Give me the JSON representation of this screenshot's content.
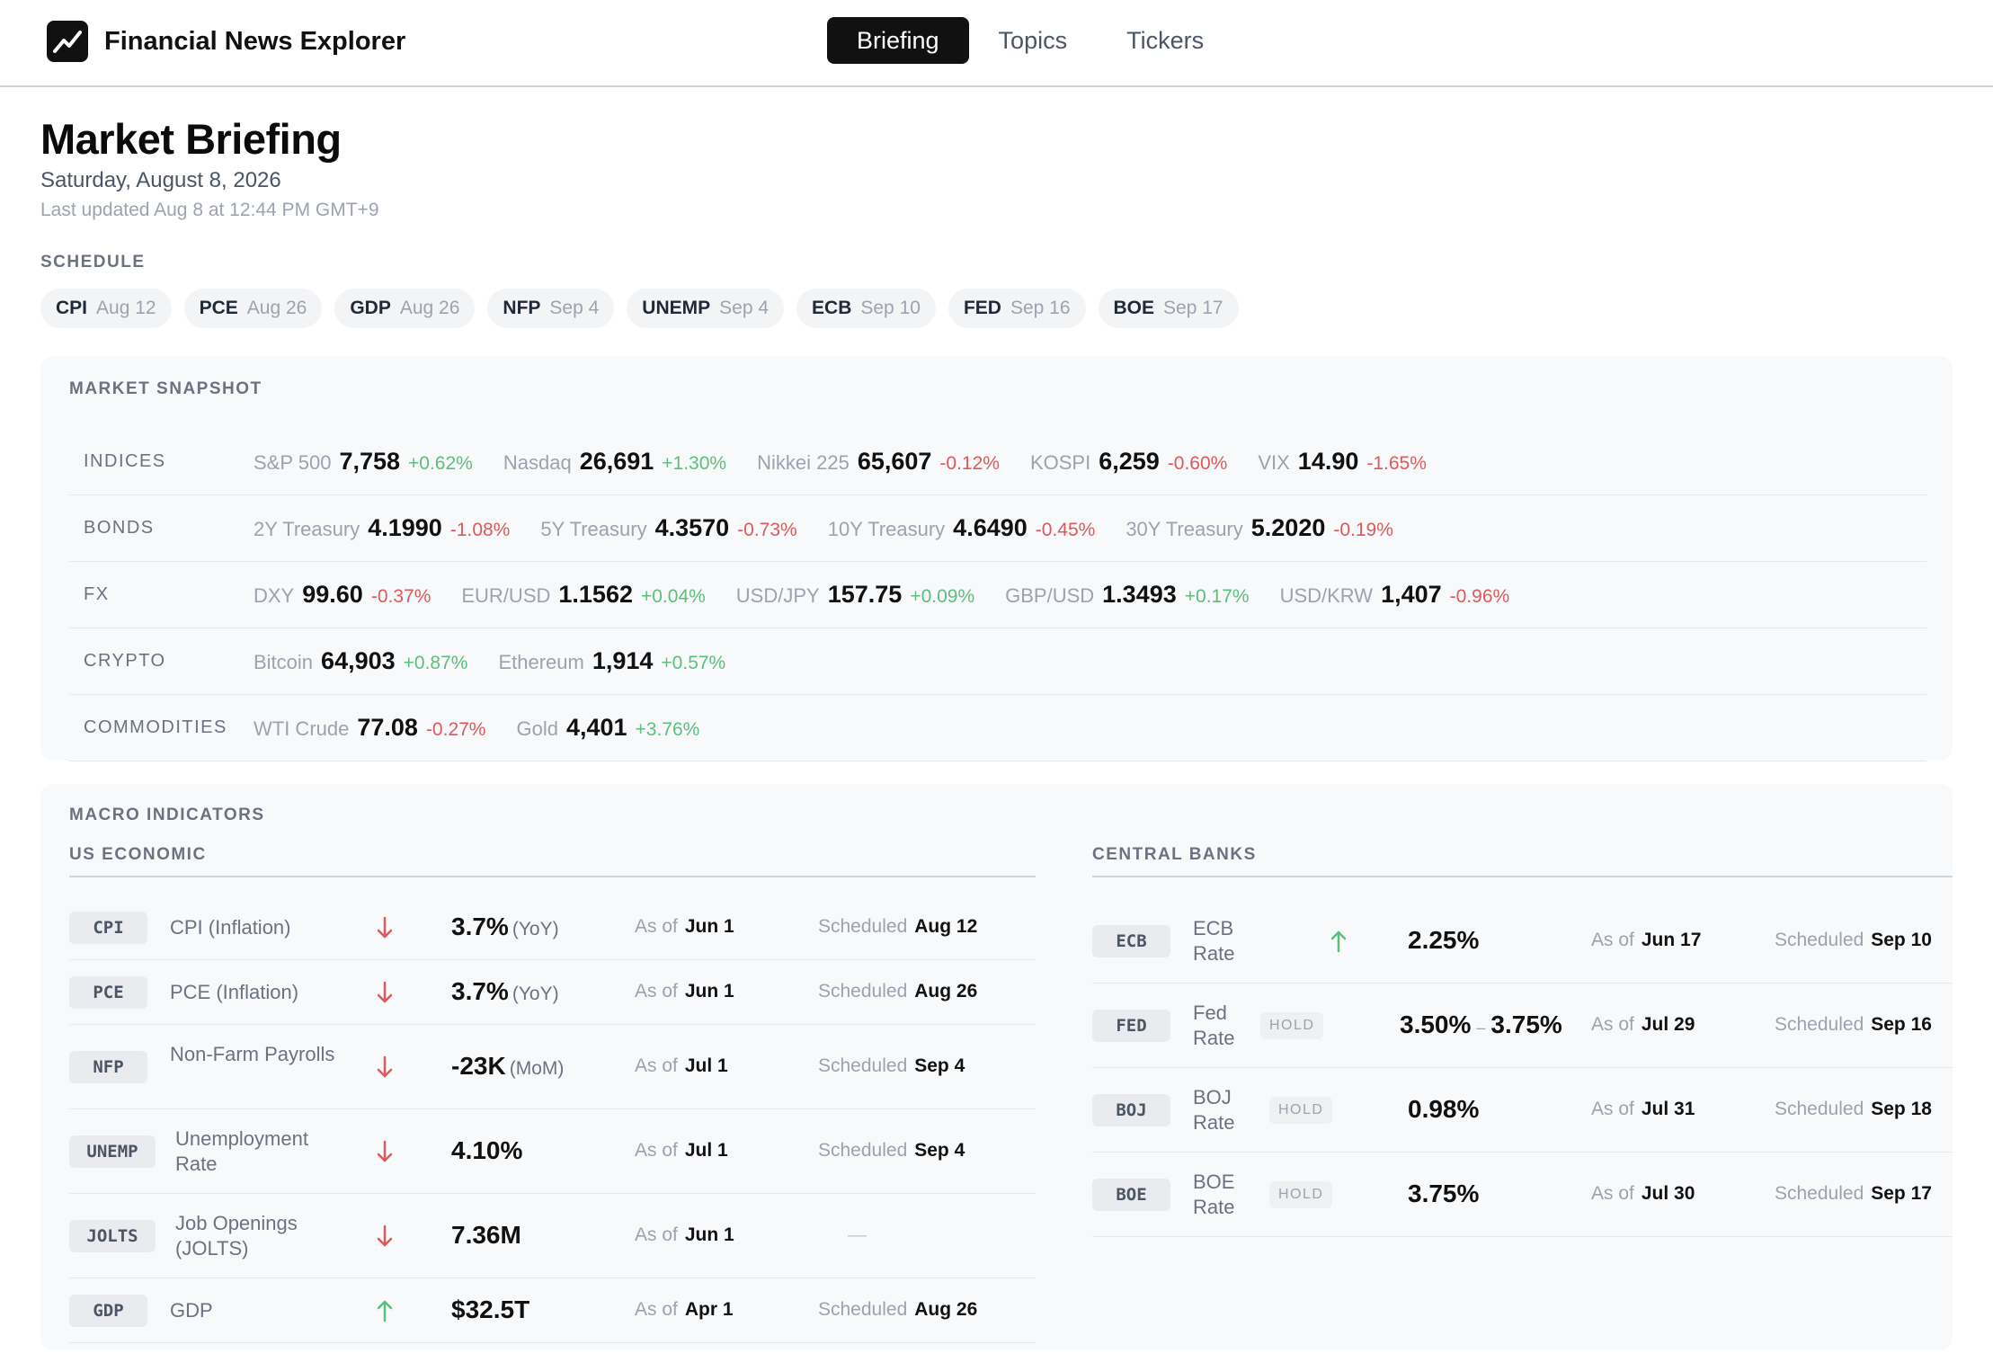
{
  "app": {
    "title": "Financial News Explorer",
    "logo_icon": "trend-up-icon"
  },
  "nav": {
    "tabs": [
      {
        "label": "Briefing",
        "active": true
      },
      {
        "label": "Topics",
        "active": false
      },
      {
        "label": "Tickers",
        "active": false
      }
    ]
  },
  "page": {
    "title": "Market Briefing",
    "date": "Saturday, August 8, 2026",
    "updated": "Last updated Aug 8 at 12:44 PM GMT+9"
  },
  "schedule": {
    "label": "SCHEDULE",
    "items": [
      {
        "code": "CPI",
        "date": "Aug 12"
      },
      {
        "code": "PCE",
        "date": "Aug 26"
      },
      {
        "code": "GDP",
        "date": "Aug 26"
      },
      {
        "code": "NFP",
        "date": "Sep 4"
      },
      {
        "code": "UNEMP",
        "date": "Sep 4"
      },
      {
        "code": "ECB",
        "date": "Sep 10"
      },
      {
        "code": "FED",
        "date": "Sep 16"
      },
      {
        "code": "BOE",
        "date": "Sep 17"
      }
    ]
  },
  "snapshot": {
    "label": "MARKET SNAPSHOT",
    "rows": [
      {
        "label": "INDICES",
        "quotes": [
          {
            "name": "S&P 500",
            "value": "7,758",
            "change": "+0.62%",
            "dir": "pos"
          },
          {
            "name": "Nasdaq",
            "value": "26,691",
            "change": "+1.30%",
            "dir": "pos"
          },
          {
            "name": "Nikkei 225",
            "value": "65,607",
            "change": "-0.12%",
            "dir": "neg"
          },
          {
            "name": "KOSPI",
            "value": "6,259",
            "change": "-0.60%",
            "dir": "neg"
          },
          {
            "name": "VIX",
            "value": "14.90",
            "change": "-1.65%",
            "dir": "neg"
          }
        ]
      },
      {
        "label": "BONDS",
        "quotes": [
          {
            "name": "2Y Treasury",
            "value": "4.1990",
            "change": "-1.08%",
            "dir": "neg"
          },
          {
            "name": "5Y Treasury",
            "value": "4.3570",
            "change": "-0.73%",
            "dir": "neg"
          },
          {
            "name": "10Y Treasury",
            "value": "4.6490",
            "change": "-0.45%",
            "dir": "neg"
          },
          {
            "name": "30Y Treasury",
            "value": "5.2020",
            "change": "-0.19%",
            "dir": "neg"
          }
        ]
      },
      {
        "label": "FX",
        "quotes": [
          {
            "name": "DXY",
            "value": "99.60",
            "change": "-0.37%",
            "dir": "neg"
          },
          {
            "name": "EUR/USD",
            "value": "1.1562",
            "change": "+0.04%",
            "dir": "pos"
          },
          {
            "name": "USD/JPY",
            "value": "157.75",
            "change": "+0.09%",
            "dir": "pos"
          },
          {
            "name": "GBP/USD",
            "value": "1.3493",
            "change": "+0.17%",
            "dir": "pos"
          },
          {
            "name": "USD/KRW",
            "value": "1,407",
            "change": "-0.96%",
            "dir": "neg"
          }
        ]
      },
      {
        "label": "CRYPTO",
        "quotes": [
          {
            "name": "Bitcoin",
            "value": "64,903",
            "change": "+0.87%",
            "dir": "pos"
          },
          {
            "name": "Ethereum",
            "value": "1,914",
            "change": "+0.57%",
            "dir": "pos"
          }
        ]
      },
      {
        "label": "COMMODITIES",
        "quotes": [
          {
            "name": "WTI Crude",
            "value": "77.08",
            "change": "-0.27%",
            "dir": "neg"
          },
          {
            "name": "Gold",
            "value": "4,401",
            "change": "+3.76%",
            "dir": "pos"
          }
        ]
      }
    ]
  },
  "macro": {
    "label": "MACRO INDICATORS",
    "as_of_label": "As of",
    "scheduled_label": "Scheduled",
    "us": {
      "label": "US ECONOMIC",
      "rows": [
        {
          "code": "CPI",
          "name": "CPI (Inflation)",
          "trend": "down",
          "value": "3.7%",
          "unit": "(YoY)",
          "as_of": "Jun 1",
          "scheduled": "Aug 12"
        },
        {
          "code": "PCE",
          "name": "PCE (Inflation)",
          "trend": "down",
          "value": "3.7%",
          "unit": "(YoY)",
          "as_of": "Jun 1",
          "scheduled": "Aug 26"
        },
        {
          "code": "NFP",
          "name": "Non-Farm Payrolls",
          "trend": "down",
          "value": "-23K",
          "unit": "(MoM)",
          "as_of": "Jul 1",
          "scheduled": "Sep 4"
        },
        {
          "code": "UNEMP",
          "name": "Unemployment Rate",
          "trend": "down",
          "value": "4.10%",
          "unit": "",
          "as_of": "Jul 1",
          "scheduled": "Sep 4"
        },
        {
          "code": "JOLTS",
          "name": "Job Openings (JOLTS)",
          "trend": "down",
          "value": "7.36M",
          "unit": "",
          "as_of": "Jun 1",
          "scheduled": ""
        },
        {
          "code": "GDP",
          "name": "GDP",
          "trend": "up",
          "value": "$32.5T",
          "unit": "",
          "as_of": "Apr 1",
          "scheduled": "Aug 26"
        }
      ],
      "empty_scheduled": "—"
    },
    "cb": {
      "label": "CENTRAL BANKS",
      "rows": [
        {
          "code": "ECB",
          "name": "ECB Rate",
          "status": "",
          "trend": "up",
          "value": "2.25%",
          "value_high": "",
          "as_of": "Jun 17",
          "scheduled": "Sep 10"
        },
        {
          "code": "FED",
          "name": "Fed Rate",
          "status": "HOLD",
          "trend": "",
          "value": "3.50%",
          "value_high": "3.75%",
          "as_of": "Jul 29",
          "scheduled": "Sep 16"
        },
        {
          "code": "BOJ",
          "name": "BOJ Rate",
          "status": "HOLD",
          "trend": "",
          "value": "0.98%",
          "value_high": "",
          "as_of": "Jul 31",
          "scheduled": "Sep 18"
        },
        {
          "code": "BOE",
          "name": "BOE Rate",
          "status": "HOLD",
          "trend": "",
          "value": "3.75%",
          "value_high": "",
          "as_of": "Jul 30",
          "scheduled": "Sep 17"
        }
      ],
      "range_separator": "–"
    }
  },
  "colors": {
    "positive": "#5cbf7a",
    "negative": "#dc5a5a",
    "accent": "#111111"
  }
}
